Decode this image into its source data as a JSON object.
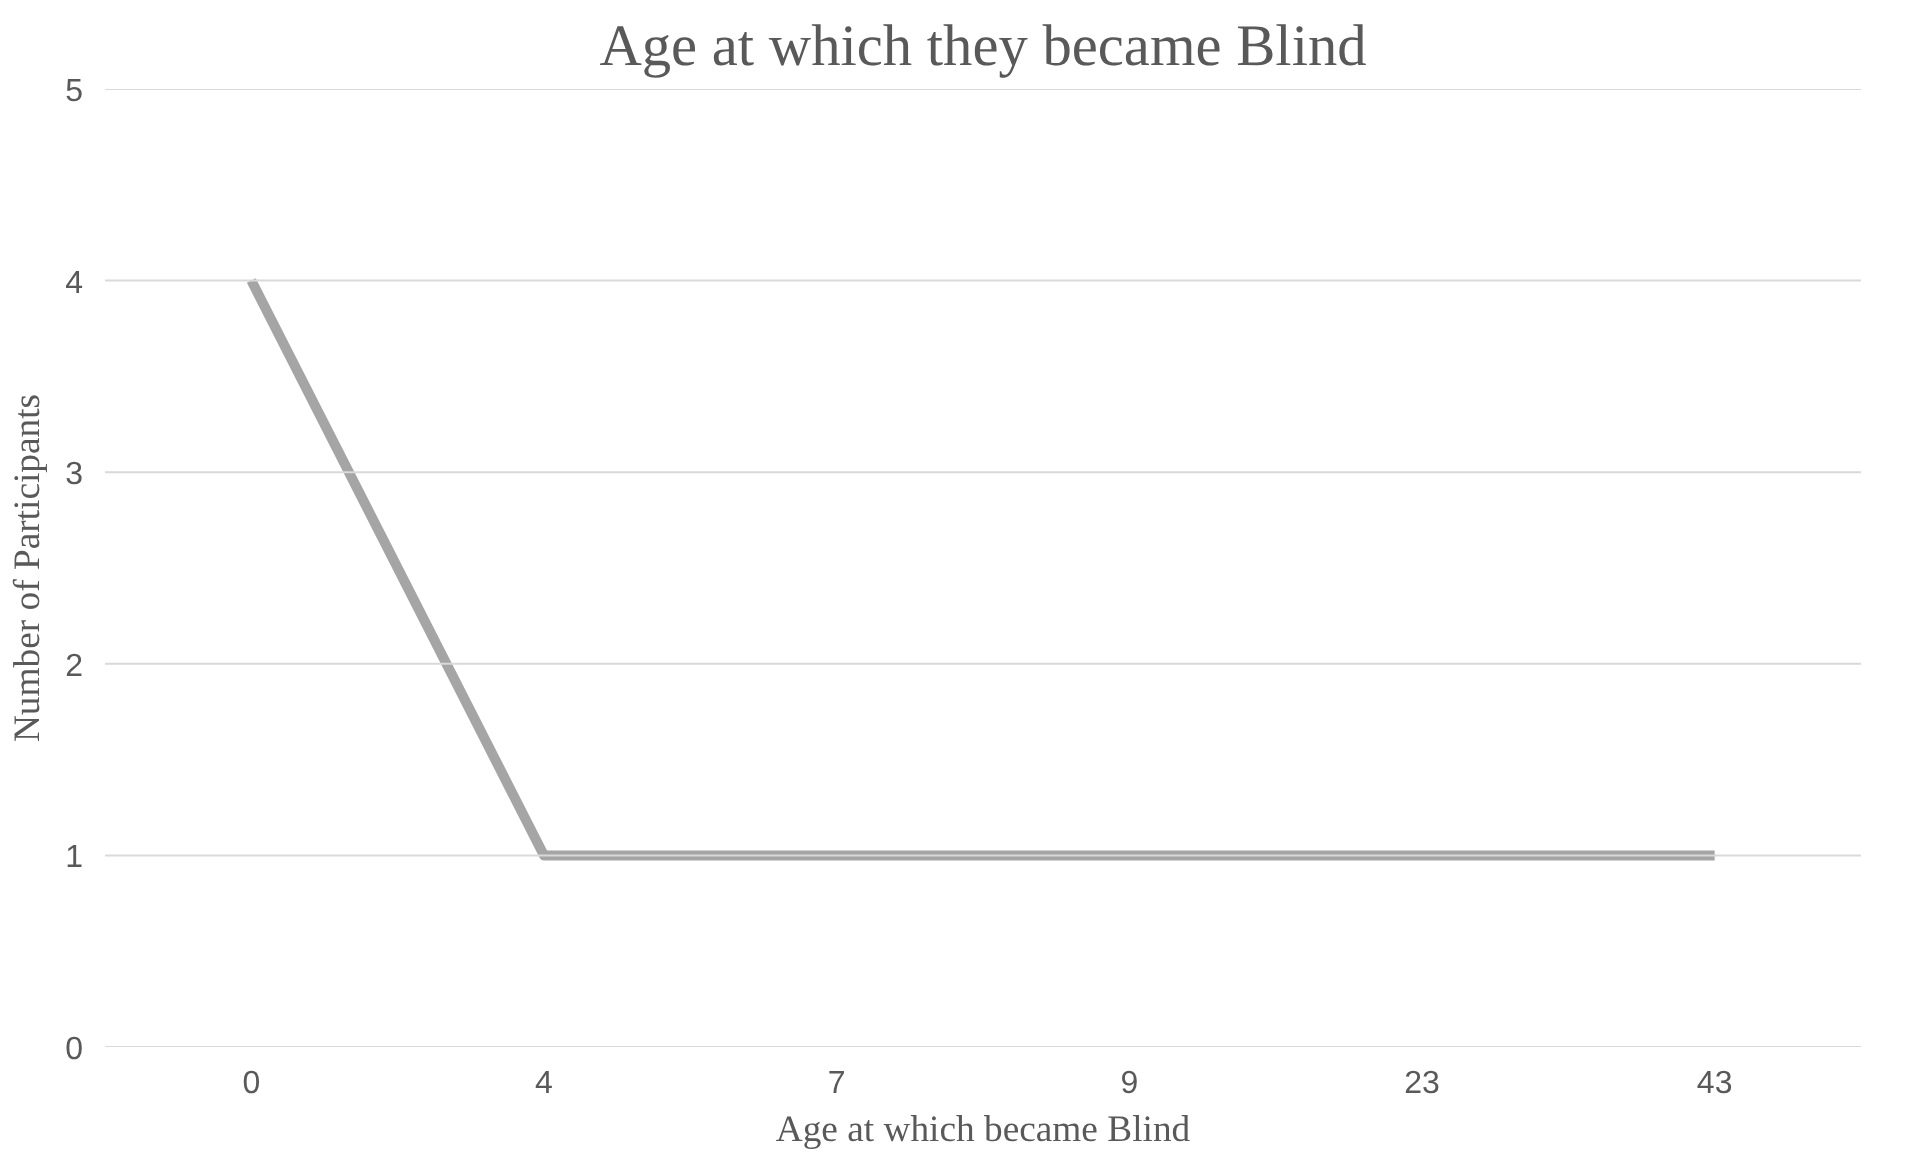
{
  "chart_data": {
    "type": "line",
    "title": "Age at which they became Blind",
    "xlabel": "Age at which became Blind",
    "ylabel": "Number of Participants",
    "categories": [
      "0",
      "4",
      "7",
      "9",
      "23",
      "43"
    ],
    "series": [
      {
        "color": "#a5a5a5",
        "values": [
          4,
          1,
          1,
          1,
          1,
          1
        ]
      }
    ],
    "ylim": [
      0,
      5
    ],
    "yticks": [
      0,
      1,
      2,
      3,
      4,
      5
    ],
    "grid": "y",
    "marker": "none",
    "line_style": "solid"
  }
}
